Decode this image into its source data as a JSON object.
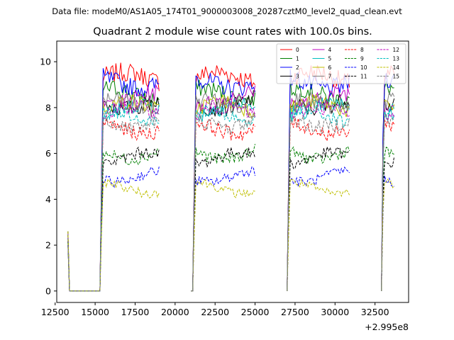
{
  "figure": {
    "suptitle": "Data file: modeM0/AS1A05_174T01_9000003008_20287cztM0_level2_quad_clean.evt",
    "title": "Quadrant 2 module wise count rates with 100.0s bins."
  },
  "chart_data": {
    "type": "line",
    "title": "Quadrant 2 module wise count rates with 100.0s bins.",
    "xlabel": "",
    "ylabel": "",
    "x_offset_label": "+2.995e8",
    "x_offset": 299500000,
    "xlim": [
      12600,
      34600
    ],
    "ylim": [
      -0.5,
      10.9
    ],
    "xticks": [
      12500,
      15000,
      17500,
      20000,
      22500,
      25000,
      27500,
      30000,
      32500
    ],
    "xtick_labels": [
      "12500",
      "15000",
      "17500",
      "20000",
      "22500",
      "25000",
      "27500",
      "30000",
      "32500"
    ],
    "yticks": [
      0,
      2,
      4,
      6,
      8,
      10
    ],
    "ytick_labels": [
      "0",
      "2",
      "4",
      "6",
      "8",
      "10"
    ],
    "grid": false,
    "legend_position": "top-right",
    "segments": [
      [
        13300,
        19050
      ],
      [
        21000,
        25050
      ],
      [
        27000,
        30950
      ],
      [
        32900,
        33750
      ]
    ],
    "active_periods": [
      [
        15400,
        19050
      ],
      [
        21200,
        25050
      ],
      [
        27100,
        30950
      ],
      [
        32950,
        33750
      ]
    ],
    "series": [
      {
        "name": "0",
        "level": 9.3,
        "color": "#ff0000",
        "dash": "solid"
      },
      {
        "name": "1",
        "level": 8.6,
        "color": "#008000",
        "dash": "solid"
      },
      {
        "name": "2",
        "level": 9.1,
        "color": "#0000ff",
        "dash": "solid"
      },
      {
        "name": "3",
        "level": 8.2,
        "color": "#000000",
        "dash": "solid"
      },
      {
        "name": "4",
        "level": 8.4,
        "color": "#bf00bf",
        "dash": "solid"
      },
      {
        "name": "5",
        "level": 7.9,
        "color": "#00bfbf",
        "dash": "solid"
      },
      {
        "name": "6",
        "level": 8.0,
        "color": "#bfbf00",
        "dash": "solid"
      },
      {
        "name": "7",
        "level": 8.1,
        "color": "#808080",
        "dash": "solid"
      },
      {
        "name": "8",
        "level": 7.1,
        "color": "#ff0000",
        "dash": "dashed"
      },
      {
        "name": "9",
        "level": 6.0,
        "color": "#008000",
        "dash": "dashed"
      },
      {
        "name": "10",
        "level": 5.0,
        "color": "#0000ff",
        "dash": "dashed"
      },
      {
        "name": "11",
        "level": 5.8,
        "color": "#000000",
        "dash": "dashed"
      },
      {
        "name": "12",
        "level": 7.8,
        "color": "#bf00bf",
        "dash": "dashed"
      },
      {
        "name": "13",
        "level": 7.6,
        "color": "#00bfbf",
        "dash": "dashed"
      },
      {
        "name": "14",
        "level": 4.5,
        "color": "#bfbf00",
        "dash": "dashed"
      },
      {
        "name": "15",
        "level": 7.4,
        "color": "#808080",
        "dash": "dashed"
      }
    ]
  }
}
